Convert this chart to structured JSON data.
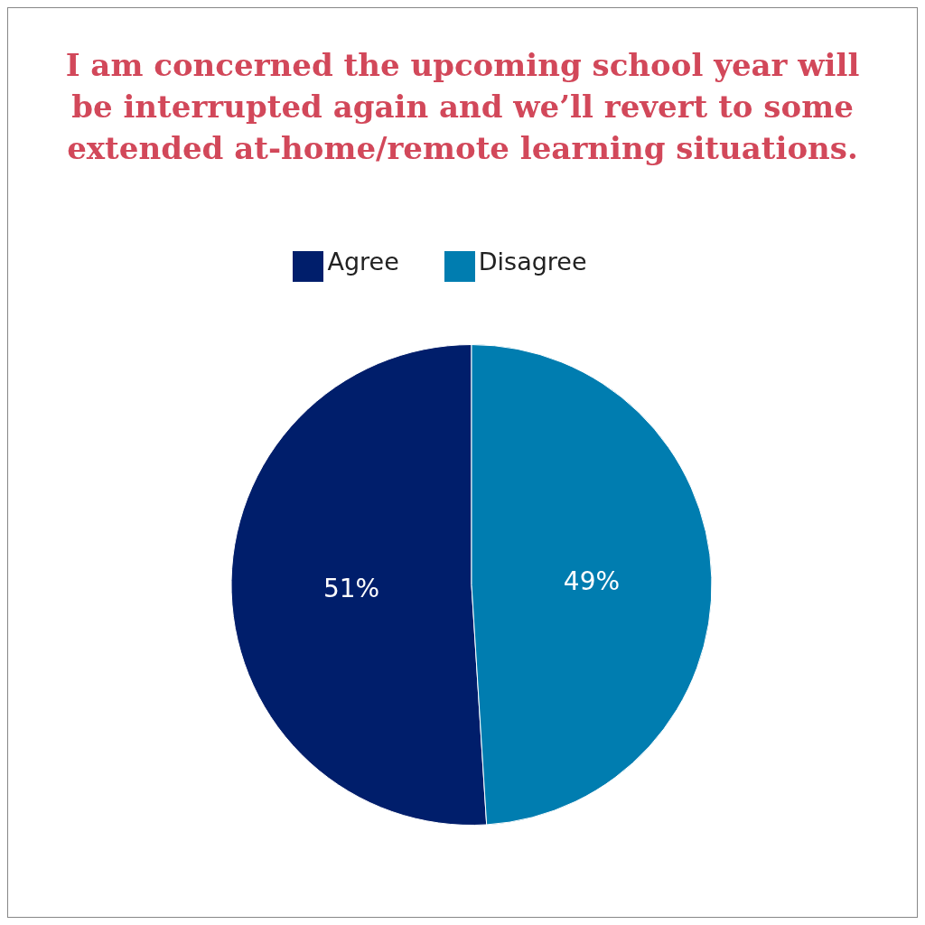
{
  "chart_data": {
    "type": "pie",
    "title": "I am concerned the upcoming school year will be interrupted again and we’ll revert to some extended at-home/remote learning situations.",
    "categories": [
      "Agree",
      "Disagree"
    ],
    "values": [
      51,
      49
    ],
    "colors": [
      "#001e6b",
      "#007db0"
    ],
    "value_labels": [
      "51%",
      "49%"
    ],
    "legend": "top"
  }
}
